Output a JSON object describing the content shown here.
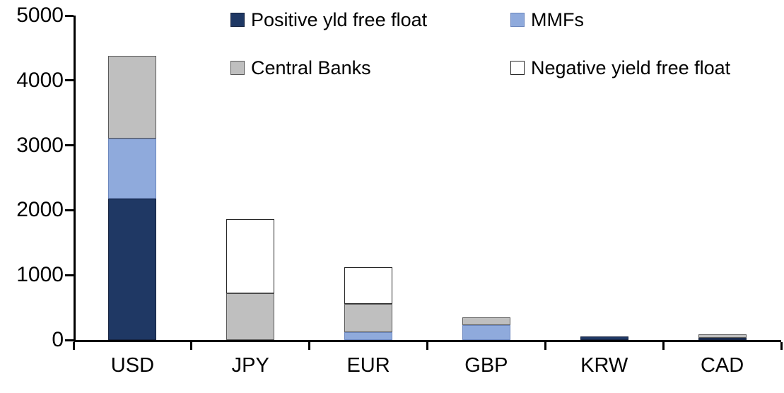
{
  "chart_data": {
    "type": "bar",
    "stacked": true,
    "title": "",
    "xlabel": "",
    "ylabel": "",
    "grid": false,
    "legend_position": "top",
    "ylim": [
      0,
      5000
    ],
    "y_ticks": [
      0,
      1000,
      2000,
      3000,
      4000,
      5000
    ],
    "categories": [
      "USD",
      "JPY",
      "EUR",
      "GBP",
      "KRW",
      "CAD"
    ],
    "series": [
      {
        "name": "Positive yld free float",
        "color": "#1F3864",
        "border_color": "#16233F",
        "values": [
          2180,
          0,
          0,
          0,
          55,
          35
        ]
      },
      {
        "name": "MMFs",
        "color": "#8FAADC",
        "border_color": "#6B86BD",
        "values": [
          920,
          0,
          115,
          225,
          0,
          0
        ]
      },
      {
        "name": "Central Banks",
        "color": "#BFBFBF",
        "border_color": "#595959",
        "values": [
          1280,
          715,
          440,
          120,
          0,
          50
        ]
      },
      {
        "name": "Negative yield free float",
        "color": "#FFFFFF",
        "border_color": "#262626",
        "values": [
          0,
          1145,
          565,
          0,
          0,
          0
        ]
      }
    ],
    "axis_color": "#000000",
    "text_color": "#000000"
  }
}
